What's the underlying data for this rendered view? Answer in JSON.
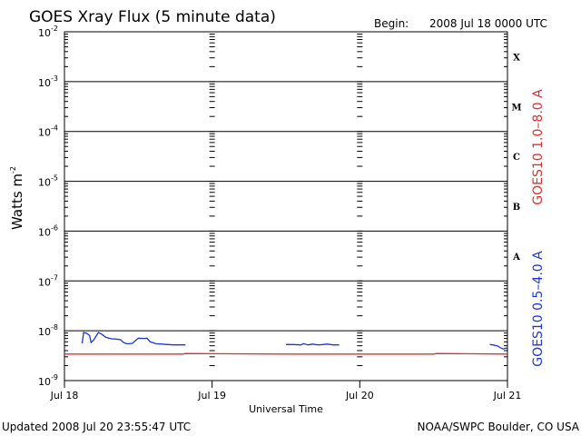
{
  "header": {
    "title": "GOES Xray Flux (5 minute data)",
    "begin_label": "Begin:",
    "begin_value": "2008 Jul 18 0000 UTC"
  },
  "footer": {
    "updated": "Updated 2008 Jul 20 23:55:47 UTC",
    "source": "NOAA/SWPC Boulder, CO USA"
  },
  "chart_data": {
    "type": "line",
    "title": "GOES Xray Flux (5 minute data)",
    "xlabel": "Universal Time",
    "ylabel": "Watts m",
    "ylabel_sup": "-2",
    "y_scale": "log",
    "ylim": [
      1e-09,
      0.01
    ],
    "y_ticks": [
      {
        "base": "10",
        "exp": "-2"
      },
      {
        "base": "10",
        "exp": "-3"
      },
      {
        "base": "10",
        "exp": "-4"
      },
      {
        "base": "10",
        "exp": "-5"
      },
      {
        "base": "10",
        "exp": "-6"
      },
      {
        "base": "10",
        "exp": "-7"
      },
      {
        "base": "10",
        "exp": "-8"
      },
      {
        "base": "10",
        "exp": "-9"
      }
    ],
    "x_ticks": [
      "Jul 18",
      "Jul 19",
      "Jul 20",
      "Jul 21"
    ],
    "xlim_days": [
      0,
      3
    ],
    "flare_classes": [
      "X",
      "M",
      "C",
      "B",
      "A"
    ],
    "grid": true,
    "series": [
      {
        "name": "GOES10 1.0–8.0 A",
        "color": "#e0302e",
        "x": [
          0.0,
          0.8,
          0.82,
          1.5,
          1.52,
          2.5,
          2.52,
          3.0
        ],
        "y": [
          3.4e-09,
          3.4e-09,
          3.5e-09,
          3.4e-09,
          3.4e-09,
          3.4e-09,
          3.5e-09,
          3.4e-09
        ]
      },
      {
        "name": "GOES10 0.5–4.0 A",
        "color": "#1a36e0",
        "segments": [
          {
            "x": [
              0.12,
              0.13,
              0.15,
              0.17,
              0.18,
              0.2,
              0.21,
              0.23,
              0.25,
              0.28,
              0.3,
              0.32,
              0.35,
              0.38,
              0.4,
              0.42,
              0.44,
              0.46,
              0.5,
              0.54,
              0.56,
              0.58,
              0.62,
              0.66,
              0.7,
              0.74,
              0.78,
              0.82
            ],
            "y": [
              5.6e-09,
              9.2e-09,
              8.9e-09,
              8e-09,
              5.8e-09,
              6.6e-09,
              7.5e-09,
              9.2e-09,
              8.6e-09,
              7.4e-09,
              7.1e-09,
              6.9e-09,
              6.8e-09,
              6.6e-09,
              5.8e-09,
              5.5e-09,
              5.5e-09,
              5.6e-09,
              7.1e-09,
              7e-09,
              7.1e-09,
              6e-09,
              5.5e-09,
              5.4e-09,
              5.3e-09,
              5.2e-09,
              5.2e-09,
              5.2e-09
            ]
          },
          {
            "x": [
              1.5,
              1.55,
              1.6,
              1.62,
              1.65,
              1.68,
              1.7,
              1.72,
              1.75,
              1.78,
              1.82,
              1.86
            ],
            "y": [
              5.3e-09,
              5.3e-09,
              5.2e-09,
              5.5e-09,
              5.2e-09,
              5.4e-09,
              5.3e-09,
              5.2e-09,
              5.3e-09,
              5.4e-09,
              5.2e-09,
              5.2e-09
            ]
          },
          {
            "x": [
              2.88,
              2.9,
              2.93,
              2.95,
              2.97,
              2.99,
              3.0
            ],
            "y": [
              5.3e-09,
              5.2e-09,
              5e-09,
              4.6e-09,
              4.3e-09,
              4.5e-09,
              4.4e-09
            ]
          }
        ]
      }
    ]
  }
}
